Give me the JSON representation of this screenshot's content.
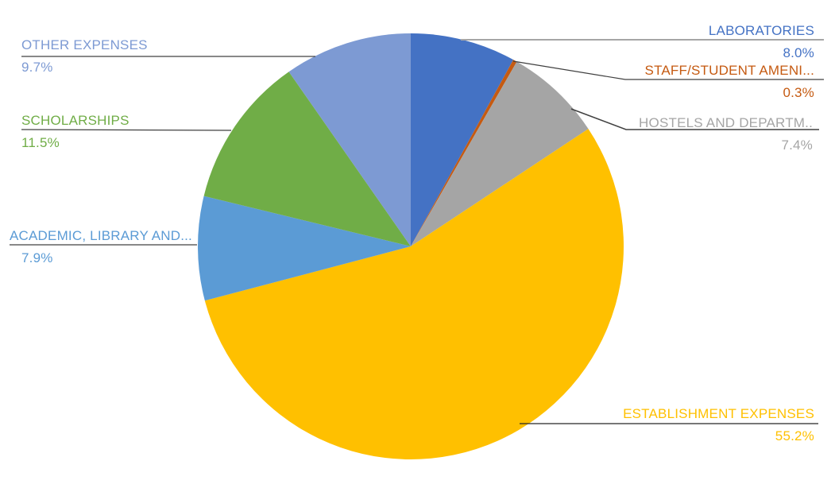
{
  "chart_data": {
    "type": "pie",
    "title": "",
    "legend_position": "none",
    "label_style": "outside-with-leader-lines",
    "start_angle_deg": 0,
    "direction": "clockwise",
    "background_color": "#FFFFFF",
    "slices": [
      {
        "label": "LABORATORIES",
        "value": 8.0,
        "pct_label": "8.0%",
        "color": "#4472C4"
      },
      {
        "label": "STAFF/STUDENT AMENI...",
        "value": 0.3,
        "pct_label": "0.3%",
        "color": "#C55A11"
      },
      {
        "label": "HOSTELS AND DEPARTM..",
        "value": 7.4,
        "pct_label": "7.4%",
        "color": "#A5A5A5"
      },
      {
        "label": "ESTABLISHMENT EXPENSES",
        "value": 55.2,
        "pct_label": "55.2%",
        "color": "#FFC000"
      },
      {
        "label": "ACADEMIC, LIBRARY AND...",
        "value": 7.9,
        "pct_label": "7.9%",
        "color": "#5B9BD5"
      },
      {
        "label": "SCHOLARSHIPS",
        "value": 11.5,
        "pct_label": "11.5%",
        "color": "#70AD47"
      },
      {
        "label": "OTHER EXPENSES",
        "value": 9.7,
        "pct_label": "9.7%",
        "color": "#7D9AD3"
      }
    ]
  }
}
